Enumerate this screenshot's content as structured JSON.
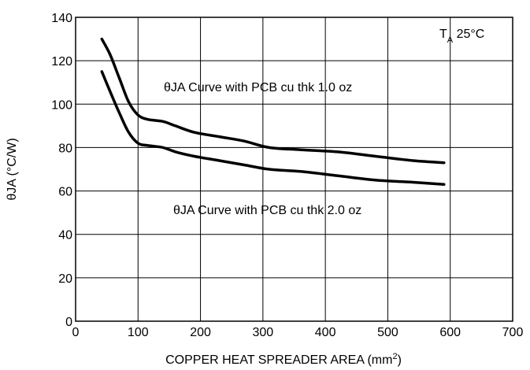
{
  "chart_data": {
    "type": "line",
    "xlabel": "COPPER HEAT SPREADER AREA (mm",
    "xlabel_superscript": "2",
    "xlabel_suffix": ")",
    "ylabel": "θJA (°C/W)",
    "xlim": [
      0,
      700
    ],
    "ylim": [
      0,
      140
    ],
    "xticks": [
      0,
      100,
      200,
      300,
      400,
      500,
      600,
      700
    ],
    "yticks": [
      0,
      20,
      40,
      60,
      80,
      100,
      120,
      140
    ],
    "grid": true,
    "series": [
      {
        "name": "θJA Curve with PCB cu thk 1.0 oz",
        "x": [
          42,
          55,
          70,
          85,
          100,
          115,
          140,
          160,
          190,
          230,
          270,
          310,
          360,
          420,
          480,
          540,
          590
        ],
        "y": [
          130,
          123,
          112,
          101,
          95,
          93,
          92,
          90,
          87,
          85,
          83,
          80,
          79,
          78,
          76,
          74,
          73
        ]
      },
      {
        "name": "θJA Curve with PCB cu thk 2.0 oz",
        "x": [
          42,
          55,
          70,
          85,
          100,
          115,
          140,
          160,
          190,
          230,
          270,
          310,
          360,
          420,
          480,
          540,
          590
        ],
        "y": [
          115,
          106,
          96,
          87,
          82,
          81,
          80,
          78,
          76,
          74,
          72,
          70,
          69,
          67,
          65,
          64,
          63
        ]
      }
    ],
    "annotations": {
      "ambient_main": "T",
      "ambient_sub": "A",
      "ambient_value": " 25°C",
      "label_1oz": "θJA Curve with PCB cu thk 1.0 oz",
      "label_2oz": "θJA Curve with PCB cu thk 2.0 oz"
    }
  }
}
